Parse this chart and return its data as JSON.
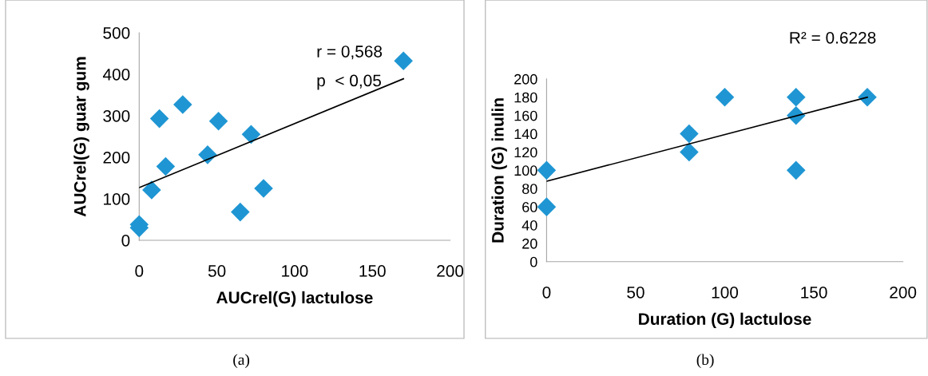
{
  "chart_data": [
    {
      "type": "scatter",
      "xlabel": "AUCrel(G) lactulose",
      "ylabel": "AUCrel(G) guar gum",
      "xlim": [
        0,
        200
      ],
      "xticks": [
        0,
        50,
        100,
        150,
        200
      ],
      "ylim": [
        0,
        500
      ],
      "yticks": [
        0,
        100,
        200,
        300,
        400,
        500
      ],
      "grid": false,
      "legend": false,
      "marker": "diamond",
      "annotations": [
        "r = 0,568",
        "p  < 0,05",
        "(a)"
      ],
      "series": [
        {
          "color": "#1f96d3",
          "x": [
            0,
            0,
            8,
            13,
            17,
            28,
            44,
            51,
            65,
            72,
            80,
            170
          ],
          "values": [
            30,
            38,
            121,
            293,
            178,
            327,
            206,
            287,
            68,
            255,
            125,
            432
          ]
        },
        {
          "type": "line",
          "color": "#000000",
          "marker": "none",
          "line_style": "solid",
          "x": [
            0,
            170
          ],
          "values": [
            127,
            389
          ]
        }
      ]
    },
    {
      "type": "scatter",
      "xlabel": "Duration (G) lactulose",
      "ylabel": "Duration (G) inulin",
      "xlim": [
        0,
        200
      ],
      "xticks": [
        0,
        50,
        100,
        150,
        200
      ],
      "ylim": [
        0,
        200
      ],
      "yticks": [
        0,
        20,
        40,
        60,
        80,
        100,
        120,
        140,
        160,
        180,
        200
      ],
      "grid": false,
      "legend": false,
      "marker": "diamond",
      "annotations": [
        "R² = 0.6228",
        "(b)"
      ],
      "series": [
        {
          "color": "#1f96d3",
          "x": [
            0,
            0,
            80,
            80,
            100,
            140,
            140,
            140,
            180
          ],
          "values": [
            100,
            60,
            140,
            120,
            180,
            180,
            160,
            100,
            180
          ]
        },
        {
          "type": "line",
          "color": "#000000",
          "marker": "none",
          "line_style": "solid",
          "x": [
            0,
            180
          ],
          "values": [
            88,
            180
          ]
        }
      ]
    }
  ]
}
